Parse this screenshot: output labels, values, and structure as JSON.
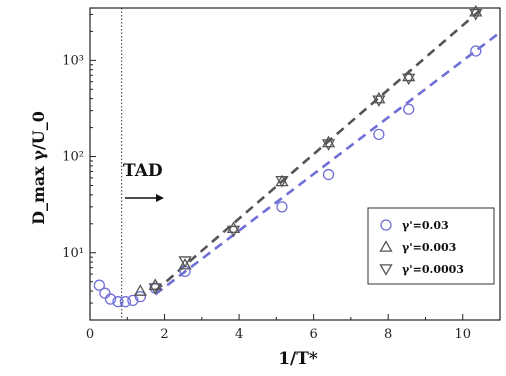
{
  "chart_data": {
    "type": "scatter",
    "title": "",
    "xlabel": "1/T*",
    "ylabel": "D_max γ/U_0",
    "xlim": [
      0,
      11
    ],
    "ylim": [
      2,
      3500
    ],
    "yscale": "log",
    "grid": false,
    "legend_position": "bottom-right",
    "x_ticks": [
      0,
      2,
      4,
      6,
      8,
      10
    ],
    "y_ticks": [
      10,
      100,
      1000
    ],
    "y_tick_labels": [
      "10¹",
      "10²",
      "10³"
    ],
    "series": [
      {
        "name": "γ'=0.03",
        "marker": "circle",
        "color": "#6f6fd8",
        "x": [
          0.25,
          0.4,
          0.55,
          0.75,
          0.95,
          1.15,
          1.35,
          1.75,
          2.55,
          5.15,
          6.4,
          7.75,
          8.55,
          10.35
        ],
        "y": [
          4.6,
          3.8,
          3.3,
          3.1,
          3.1,
          3.2,
          3.5,
          4.3,
          6.4,
          30,
          65,
          170,
          310,
          1250
        ]
      },
      {
        "name": "γ'=0.003",
        "marker": "triangle-up",
        "color": "#555555",
        "x": [
          1.35,
          1.75,
          2.55,
          3.85,
          5.15,
          6.4,
          7.75,
          8.55,
          10.35
        ],
        "y": [
          4.0,
          4.6,
          7.5,
          18,
          55,
          140,
          400,
          680,
          3200
        ]
      },
      {
        "name": "γ'=0.0003",
        "marker": "triangle-down",
        "color": "#555555",
        "x": [
          1.75,
          2.55,
          3.85,
          5.15,
          6.4,
          7.75,
          8.55,
          10.35
        ],
        "y": [
          4.3,
          8.2,
          17,
          56,
          135,
          385,
          650,
          3050
        ]
      }
    ],
    "fit_lines": [
      {
        "color": "#555555",
        "x": [
          1.75,
          10.5
        ],
        "y": [
          4.0,
          3400
        ]
      },
      {
        "color": "#6f6fd8",
        "x": [
          1.75,
          11.0
        ],
        "y": [
          3.7,
          1950
        ]
      }
    ],
    "annotations": [
      {
        "text": "TAD",
        "x": 0.9,
        "y": 24,
        "arrow": true
      },
      {
        "type": "vline",
        "x": 0.85,
        "style": "dotted"
      }
    ]
  }
}
